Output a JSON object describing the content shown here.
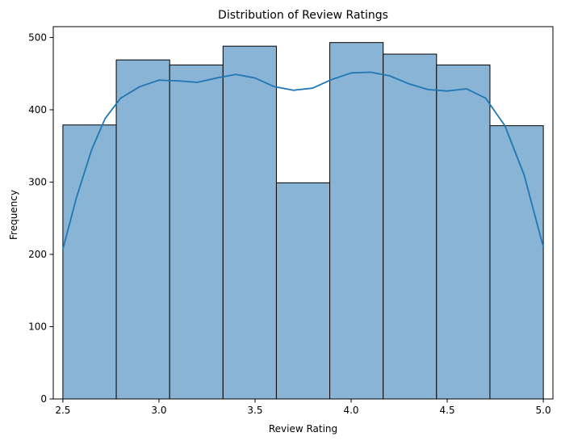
{
  "chart_data": {
    "type": "bar",
    "title": "Distribution of Review Ratings",
    "xlabel": "Review Rating",
    "ylabel": "Frequency",
    "xlim": [
      2.45,
      5.05
    ],
    "ylim": [
      0,
      515
    ],
    "x_ticks": [
      2.5,
      3.0,
      3.5,
      4.0,
      4.5,
      5.0
    ],
    "x_tick_labels": [
      "2.5",
      "3.0",
      "3.5",
      "4.0",
      "4.5",
      "5.0"
    ],
    "y_ticks": [
      0,
      100,
      200,
      300,
      400,
      500
    ],
    "y_tick_labels": [
      "0",
      "100",
      "200",
      "300",
      "400",
      "500"
    ],
    "bins": [
      {
        "x0": 2.5,
        "x1": 2.7778,
        "count": 379
      },
      {
        "x0": 2.7778,
        "x1": 3.0556,
        "count": 469
      },
      {
        "x0": 3.0556,
        "x1": 3.3333,
        "count": 462
      },
      {
        "x0": 3.3333,
        "x1": 3.6111,
        "count": 488
      },
      {
        "x0": 3.6111,
        "x1": 3.8889,
        "count": 299
      },
      {
        "x0": 3.8889,
        "x1": 4.1667,
        "count": 493
      },
      {
        "x0": 4.1667,
        "x1": 4.4444,
        "count": 477
      },
      {
        "x0": 4.4444,
        "x1": 4.7222,
        "count": 462
      },
      {
        "x0": 4.7222,
        "x1": 5.0,
        "count": 378
      }
    ],
    "kde": {
      "x": [
        2.5,
        2.57,
        2.65,
        2.72,
        2.8,
        2.9,
        3.0,
        3.1,
        3.2,
        3.3,
        3.4,
        3.5,
        3.6,
        3.7,
        3.8,
        3.9,
        4.0,
        4.1,
        4.2,
        4.3,
        4.4,
        4.5,
        4.6,
        4.7,
        4.8,
        4.9,
        5.0
      ],
      "y": [
        207,
        278,
        345,
        388,
        416,
        432,
        441,
        440,
        438,
        444,
        449,
        444,
        432,
        427,
        430,
        442,
        451,
        452,
        447,
        436,
        428,
        426,
        429,
        416,
        378,
        310,
        210
      ]
    },
    "grid": false,
    "legend": "none",
    "colors": {
      "bar_fill": "#8ab4d6",
      "bar_edge": "#000000",
      "kde_line": "#1f77b4"
    }
  }
}
